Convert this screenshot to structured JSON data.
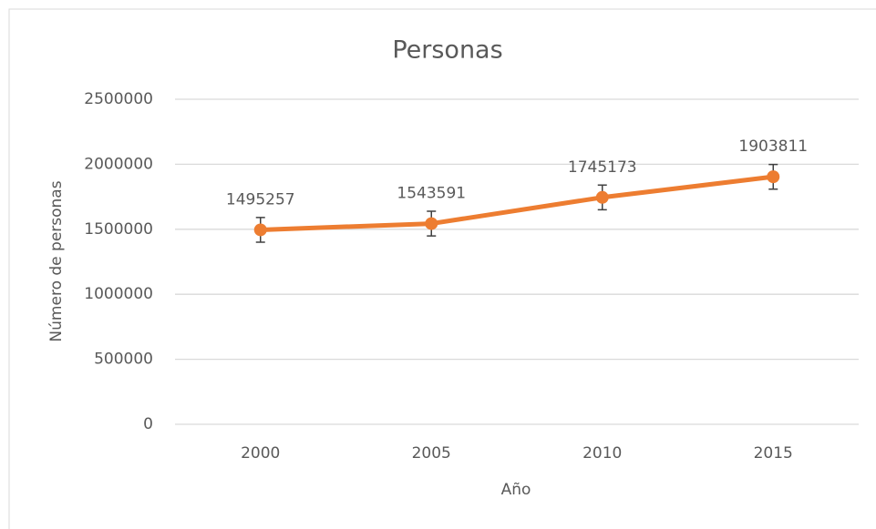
{
  "chart_data": {
    "type": "line",
    "title": "Personas",
    "x_label": "Año",
    "y_label": "Número de personas",
    "categories": [
      "2000",
      "2005",
      "2010",
      "2015"
    ],
    "values": [
      1495257,
      1543591,
      1745173,
      1903811
    ],
    "errors": [
      95000,
      95000,
      95000,
      95000
    ],
    "color": "#ed7d31",
    "ylim": [
      0,
      2500000
    ],
    "yticks": [
      0,
      500000,
      1000000,
      1500000,
      2000000,
      2500000
    ],
    "grid": true
  }
}
